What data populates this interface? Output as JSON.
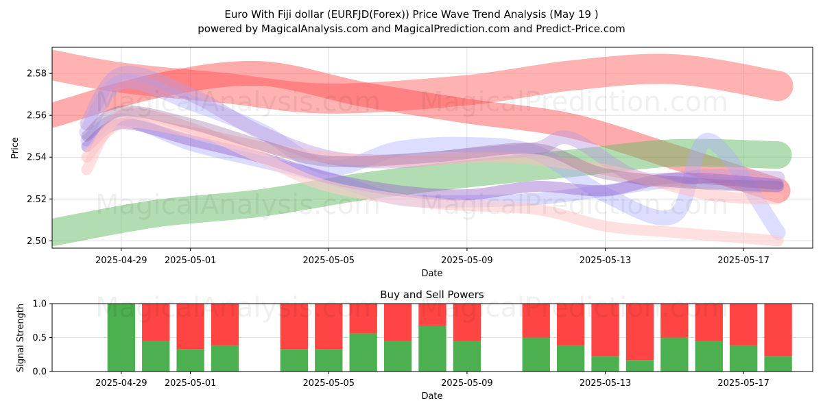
{
  "title_line1": "Euro With Fiji dollar (EURFJD(Forex)) Price Wave Trend Analysis (May 19 )",
  "title_line2": "powered by MagicalAnalysis.com and MagicalPrediction.com and Predict-Price.com",
  "watermarks": [
    "MagicalAnalysis.com",
    "MagicalPrediction.com"
  ],
  "colors": {
    "green": "#4caf50",
    "red": "#ff4444",
    "blue": "#7777ff",
    "purple": "#9966cc",
    "pink": "#ffaaaa"
  },
  "chart_data": [
    {
      "type": "line",
      "title": "",
      "xlabel": "Date",
      "ylabel": "Price",
      "xlim": [
        "2025-04-27",
        "2025-05-19"
      ],
      "ylim": [
        2.4965,
        2.5925
      ],
      "x_ticks": [
        "2025-04-29",
        "2025-05-01",
        "2025-05-05",
        "2025-05-09",
        "2025-05-13",
        "2025-05-17"
      ],
      "y_ticks": [
        2.5,
        2.52,
        2.54,
        2.56,
        2.58
      ],
      "y_tick_labels": [
        "2.50",
        "2.52",
        "2.54",
        "2.56",
        "2.58"
      ],
      "grid": true,
      "series": [
        {
          "color": "#ff6666",
          "opacity": 0.5,
          "width": 44,
          "x": [
            "2025-04-27",
            "2025-04-29",
            "2025-05-02",
            "2025-05-05",
            "2025-05-09",
            "2025-05-12",
            "2025-05-15",
            "2025-05-18"
          ],
          "y": [
            2.584,
            2.578,
            2.573,
            2.568,
            2.572,
            2.579,
            2.582,
            2.574
          ]
        },
        {
          "color": "#ff4444",
          "opacity": 0.45,
          "width": 36,
          "x": [
            "2025-04-27",
            "2025-04-30",
            "2025-05-03",
            "2025-05-06",
            "2025-05-09",
            "2025-05-12",
            "2025-05-15",
            "2025-05-18"
          ],
          "y": [
            2.56,
            2.574,
            2.58,
            2.57,
            2.562,
            2.555,
            2.54,
            2.524
          ]
        },
        {
          "color": "#66bb66",
          "opacity": 0.5,
          "width": 40,
          "x": [
            "2025-04-27",
            "2025-04-30",
            "2025-05-03",
            "2025-05-06",
            "2025-05-09",
            "2025-05-12",
            "2025-05-15",
            "2025-05-18"
          ],
          "y": [
            2.504,
            2.513,
            2.518,
            2.526,
            2.532,
            2.537,
            2.542,
            2.541
          ]
        },
        {
          "color": "#aaaaff",
          "opacity": 0.4,
          "width": 22,
          "x": [
            "2025-04-28",
            "2025-04-29",
            "2025-05-01",
            "2025-05-03",
            "2025-05-05",
            "2025-05-07",
            "2025-05-09",
            "2025-05-11",
            "2025-05-13",
            "2025-05-15",
            "2025-05-16",
            "2025-05-18"
          ],
          "y": [
            2.552,
            2.576,
            2.566,
            2.553,
            2.535,
            2.544,
            2.546,
            2.542,
            2.522,
            2.512,
            2.548,
            2.504
          ]
        },
        {
          "color": "#9999ff",
          "opacity": 0.35,
          "width": 18,
          "x": [
            "2025-04-28",
            "2025-04-29",
            "2025-05-01",
            "2025-05-03",
            "2025-05-05",
            "2025-05-07",
            "2025-05-09",
            "2025-05-11",
            "2025-05-13",
            "2025-05-15",
            "2025-05-18"
          ],
          "y": [
            2.548,
            2.558,
            2.546,
            2.538,
            2.53,
            2.52,
            2.519,
            2.52,
            2.524,
            2.528,
            2.526
          ]
        },
        {
          "color": "#bb99dd",
          "opacity": 0.45,
          "width": 20,
          "x": [
            "2025-04-28",
            "2025-04-29",
            "2025-05-01",
            "2025-05-03",
            "2025-05-05",
            "2025-05-07",
            "2025-05-09",
            "2025-05-11",
            "2025-05-12",
            "2025-05-14",
            "2025-05-16",
            "2025-05-18"
          ],
          "y": [
            2.556,
            2.58,
            2.57,
            2.552,
            2.54,
            2.538,
            2.541,
            2.544,
            2.549,
            2.53,
            2.531,
            2.53
          ]
        },
        {
          "color": "#9966cc",
          "opacity": 0.45,
          "width": 16,
          "x": [
            "2025-04-28",
            "2025-04-29",
            "2025-05-01",
            "2025-05-03",
            "2025-05-05",
            "2025-05-07",
            "2025-05-09",
            "2025-05-11",
            "2025-05-13",
            "2025-05-15",
            "2025-05-18"
          ],
          "y": [
            2.545,
            2.556,
            2.548,
            2.54,
            2.53,
            2.524,
            2.522,
            2.526,
            2.524,
            2.53,
            2.527
          ]
        },
        {
          "color": "#ffcccc",
          "opacity": 0.6,
          "width": 16,
          "x": [
            "2025-04-28",
            "2025-04-29",
            "2025-05-01",
            "2025-05-03",
            "2025-05-05",
            "2025-05-08",
            "2025-05-11",
            "2025-05-13",
            "2025-05-15",
            "2025-05-18"
          ],
          "y": [
            2.534,
            2.56,
            2.554,
            2.54,
            2.526,
            2.518,
            2.515,
            2.507,
            2.504,
            2.5
          ]
        },
        {
          "color": "#ffbbbb",
          "opacity": 0.5,
          "width": 16,
          "x": [
            "2025-04-28",
            "2025-04-29",
            "2025-05-01",
            "2025-05-04",
            "2025-05-07",
            "2025-05-10",
            "2025-05-13",
            "2025-05-16",
            "2025-05-18"
          ],
          "y": [
            2.54,
            2.556,
            2.552,
            2.542,
            2.538,
            2.54,
            2.534,
            2.522,
            2.52
          ]
        },
        {
          "color": "#996699",
          "opacity": 0.35,
          "width": 16,
          "x": [
            "2025-04-28",
            "2025-04-29",
            "2025-05-01",
            "2025-05-03",
            "2025-05-05",
            "2025-05-08",
            "2025-05-11",
            "2025-05-13",
            "2025-05-16",
            "2025-05-18"
          ],
          "y": [
            2.55,
            2.562,
            2.556,
            2.546,
            2.538,
            2.54,
            2.544,
            2.532,
            2.527,
            2.526
          ]
        }
      ]
    },
    {
      "type": "bar",
      "title": "Buy and Sell Powers",
      "xlabel": "Date",
      "ylabel": "Signal Strength",
      "xlim": [
        "2025-04-27",
        "2025-05-19"
      ],
      "ylim": [
        0,
        1.0
      ],
      "y_ticks": [
        0.0,
        0.5,
        1.0
      ],
      "y_tick_labels": [
        "0.0",
        "0.5",
        "1.0"
      ],
      "x_ticks": [
        "2025-04-29",
        "2025-05-01",
        "2025-05-05",
        "2025-05-09",
        "2025-05-13",
        "2025-05-17"
      ],
      "grid": true,
      "series": [
        {
          "name": "buy",
          "color": "#4caf50"
        },
        {
          "name": "sell",
          "color": "#ff4444"
        }
      ],
      "x": [
        "2025-04-29",
        "2025-04-30",
        "2025-05-01",
        "2025-05-02",
        "2025-05-04",
        "2025-05-05",
        "2025-05-06",
        "2025-05-07",
        "2025-05-08",
        "2025-05-09",
        "2025-05-11",
        "2025-05-12",
        "2025-05-13",
        "2025-05-14",
        "2025-05-15",
        "2025-05-16",
        "2025-05-17",
        "2025-05-18"
      ],
      "buy": [
        1.0,
        0.45,
        0.33,
        0.38,
        0.33,
        0.33,
        0.56,
        0.45,
        0.67,
        0.45,
        0.5,
        0.38,
        0.22,
        0.17,
        0.5,
        0.45,
        0.38,
        0.22
      ]
    }
  ]
}
